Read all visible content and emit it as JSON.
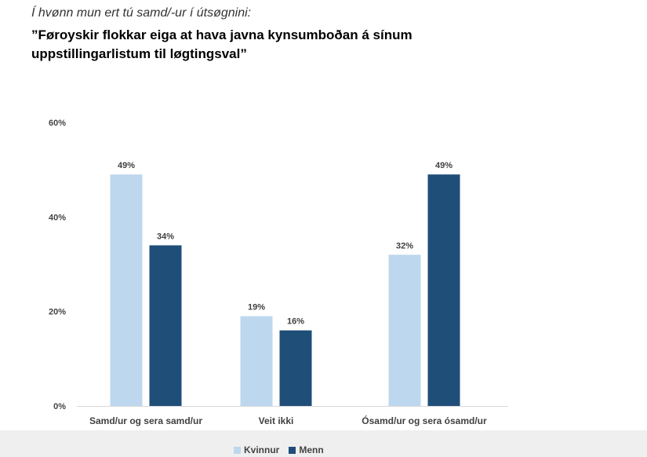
{
  "header": {
    "intro": "Í hvønn mun ert tú samd/-ur í útsøgnini:",
    "title": "”Føroyskir flokkar eiga at hava javna kynsumboðan á sínum uppstillingarlistum til løgtingsval”"
  },
  "chart_data": {
    "type": "bar",
    "categories": [
      "Samd/ur og sera samd/ur",
      "Veit ikki",
      "Ósamd/ur og sera ósamd/ur"
    ],
    "series": [
      {
        "name": "Kvinnur",
        "values": [
          49,
          19,
          32
        ],
        "labels": [
          "49%",
          "19%",
          "32%"
        ],
        "color": "#bdd7ee"
      },
      {
        "name": "Menn",
        "values": [
          34,
          16,
          49
        ],
        "labels": [
          "34%",
          "16%",
          "49%"
        ],
        "color": "#1f4e79"
      }
    ],
    "ylim": [
      0,
      60
    ],
    "yticks": [
      0,
      20,
      40,
      60
    ],
    "ytick_labels": [
      "0%",
      "20%",
      "40%",
      "60%"
    ],
    "grid": false,
    "legend_position": "bottom"
  }
}
